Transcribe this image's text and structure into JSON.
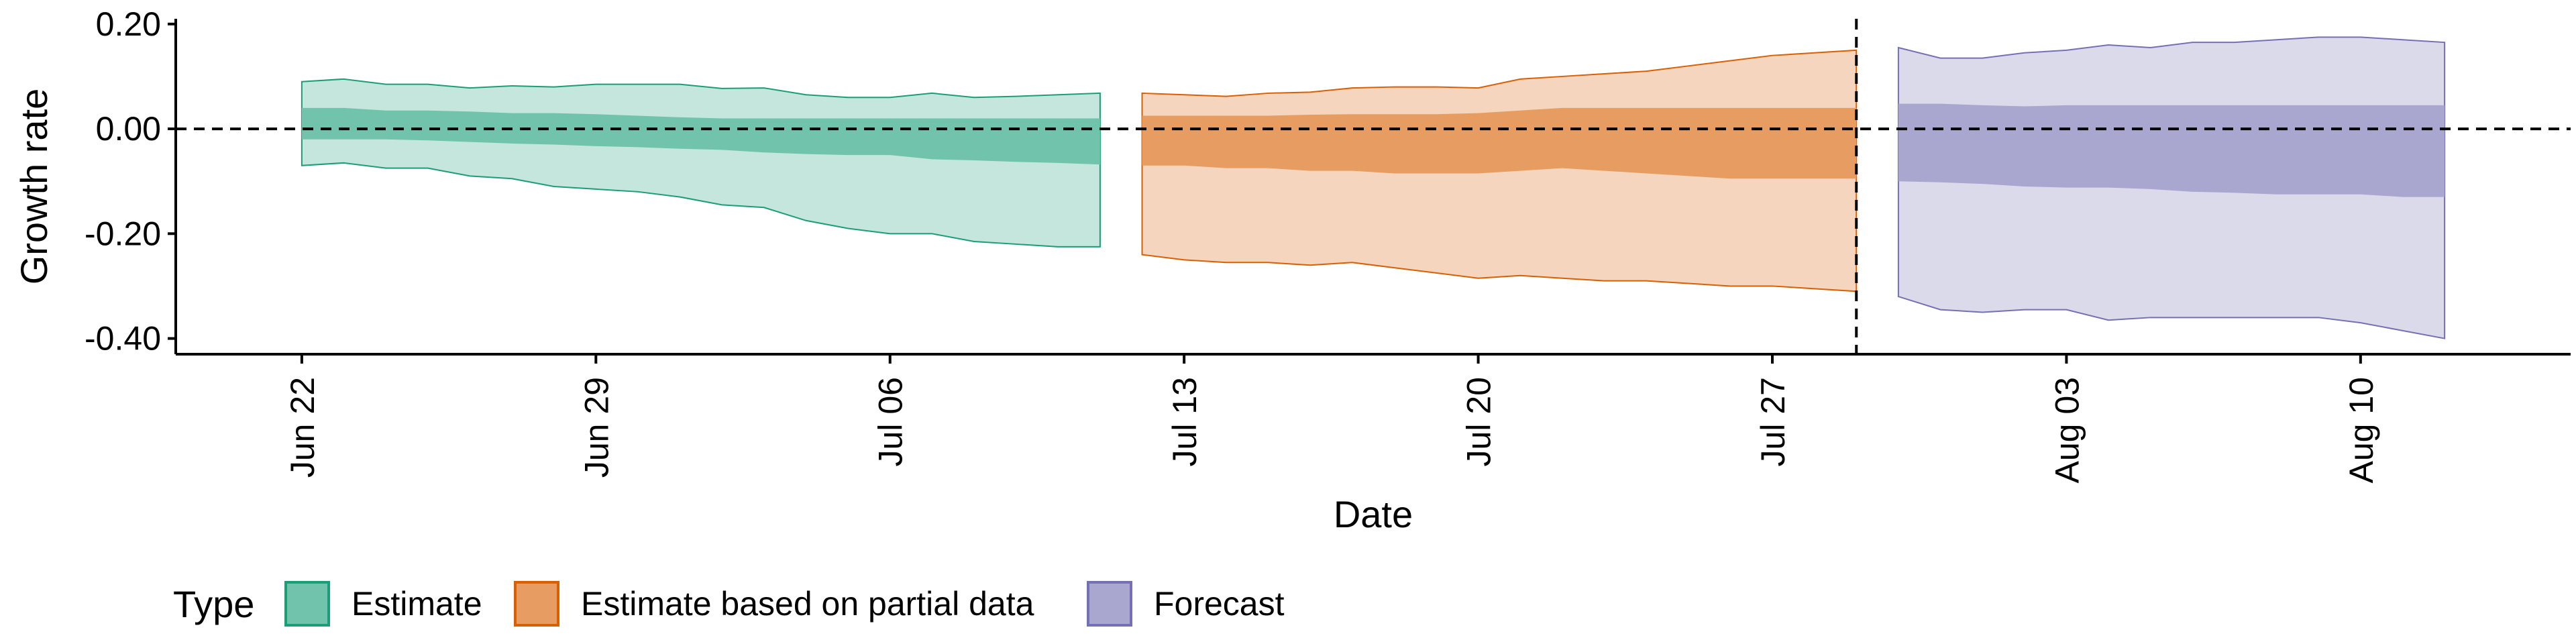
{
  "chart_data": {
    "type": "area",
    "xlabel": "Date",
    "ylabel": "Growth rate",
    "ylim": [
      -0.43,
      0.21
    ],
    "y_ticks": [
      0.2,
      0.0,
      -0.2,
      -0.4
    ],
    "y_tick_labels": [
      "0.20",
      "0.00",
      "-0.20",
      "-0.40"
    ],
    "x_ticks": [
      "2020-06-22",
      "2020-06-29",
      "2020-07-06",
      "2020-07-13",
      "2020-07-20",
      "2020-07-27",
      "2020-08-03",
      "2020-08-10"
    ],
    "x_tick_labels": [
      "Jun 22",
      "Jun 29",
      "Jul 06",
      "Jul 13",
      "Jul 20",
      "Jul 27",
      "Aug 03",
      "Aug 10"
    ],
    "xlim": [
      "2020-06-19",
      "2020-08-15"
    ],
    "reference_hline": 0,
    "reference_vline": "2020-07-29",
    "legend": {
      "title": "Type",
      "position": "bottom"
    },
    "series": [
      {
        "name": "Estimate",
        "fill": "#1b9e77",
        "line": "#1b9e77",
        "x": [
          "2020-06-22",
          "2020-06-23",
          "2020-06-24",
          "2020-06-25",
          "2020-06-26",
          "2020-06-27",
          "2020-06-28",
          "2020-06-29",
          "2020-06-30",
          "2020-07-01",
          "2020-07-02",
          "2020-07-03",
          "2020-07-04",
          "2020-07-05",
          "2020-07-06",
          "2020-07-07",
          "2020-07-08",
          "2020-07-09",
          "2020-07-10",
          "2020-07-11"
        ],
        "upper90": [
          0.09,
          0.095,
          0.085,
          0.085,
          0.078,
          0.082,
          0.08,
          0.085,
          0.085,
          0.085,
          0.077,
          0.078,
          0.065,
          0.06,
          0.06,
          0.068,
          0.06,
          0.062,
          0.065,
          0.068
        ],
        "upper50": [
          0.04,
          0.04,
          0.035,
          0.035,
          0.033,
          0.03,
          0.03,
          0.028,
          0.025,
          0.022,
          0.02,
          0.02,
          0.02,
          0.02,
          0.02,
          0.02,
          0.02,
          0.02,
          0.02,
          0.02
        ],
        "lower50": [
          -0.02,
          -0.02,
          -0.02,
          -0.022,
          -0.025,
          -0.028,
          -0.03,
          -0.033,
          -0.035,
          -0.038,
          -0.04,
          -0.045,
          -0.048,
          -0.05,
          -0.05,
          -0.058,
          -0.06,
          -0.063,
          -0.065,
          -0.068
        ],
        "lower90": [
          -0.07,
          -0.065,
          -0.075,
          -0.075,
          -0.09,
          -0.095,
          -0.11,
          -0.115,
          -0.12,
          -0.13,
          -0.145,
          -0.15,
          -0.175,
          -0.19,
          -0.2,
          -0.2,
          -0.215,
          -0.22,
          -0.225,
          -0.225
        ]
      },
      {
        "name": "Estimate based on partial data",
        "fill": "#d95f02",
        "line": "#d95f02",
        "x": [
          "2020-07-12",
          "2020-07-13",
          "2020-07-14",
          "2020-07-15",
          "2020-07-16",
          "2020-07-17",
          "2020-07-18",
          "2020-07-19",
          "2020-07-20",
          "2020-07-21",
          "2020-07-22",
          "2020-07-23",
          "2020-07-24",
          "2020-07-25",
          "2020-07-26",
          "2020-07-27",
          "2020-07-28",
          "2020-07-29"
        ],
        "upper90": [
          0.068,
          0.065,
          0.062,
          0.068,
          0.07,
          0.078,
          0.08,
          0.08,
          0.078,
          0.095,
          0.1,
          0.105,
          0.11,
          0.12,
          0.13,
          0.14,
          0.145,
          0.15
        ],
        "upper50": [
          0.025,
          0.025,
          0.025,
          0.025,
          0.027,
          0.028,
          0.028,
          0.028,
          0.03,
          0.035,
          0.04,
          0.04,
          0.04,
          0.04,
          0.04,
          0.04,
          0.04,
          0.04
        ],
        "lower50": [
          -0.07,
          -0.07,
          -0.075,
          -0.075,
          -0.08,
          -0.08,
          -0.085,
          -0.085,
          -0.085,
          -0.08,
          -0.075,
          -0.08,
          -0.085,
          -0.09,
          -0.095,
          -0.095,
          -0.095,
          -0.095
        ],
        "lower90": [
          -0.24,
          -0.25,
          -0.255,
          -0.255,
          -0.26,
          -0.255,
          -0.265,
          -0.275,
          -0.285,
          -0.28,
          -0.285,
          -0.29,
          -0.29,
          -0.295,
          -0.3,
          -0.3,
          -0.305,
          -0.31
        ]
      },
      {
        "name": "Forecast",
        "fill": "#7570b3",
        "line": "#7570b3",
        "x": [
          "2020-07-30",
          "2020-07-31",
          "2020-08-01",
          "2020-08-02",
          "2020-08-03",
          "2020-08-04",
          "2020-08-05",
          "2020-08-06",
          "2020-08-07",
          "2020-08-08",
          "2020-08-09",
          "2020-08-10",
          "2020-08-11",
          "2020-08-12"
        ],
        "upper90": [
          0.155,
          0.135,
          0.135,
          0.145,
          0.15,
          0.16,
          0.155,
          0.165,
          0.165,
          0.17,
          0.175,
          0.175,
          0.17,
          0.165
        ],
        "upper50": [
          0.048,
          0.048,
          0.045,
          0.043,
          0.045,
          0.045,
          0.045,
          0.045,
          0.045,
          0.045,
          0.045,
          0.045,
          0.045,
          0.045
        ],
        "lower50": [
          -0.1,
          -0.102,
          -0.105,
          -0.11,
          -0.112,
          -0.112,
          -0.115,
          -0.12,
          -0.122,
          -0.125,
          -0.125,
          -0.125,
          -0.13,
          -0.13
        ],
        "lower90": [
          -0.32,
          -0.345,
          -0.35,
          -0.345,
          -0.345,
          -0.365,
          -0.36,
          -0.36,
          -0.36,
          -0.36,
          -0.36,
          -0.37,
          -0.385,
          -0.4
        ]
      }
    ]
  }
}
